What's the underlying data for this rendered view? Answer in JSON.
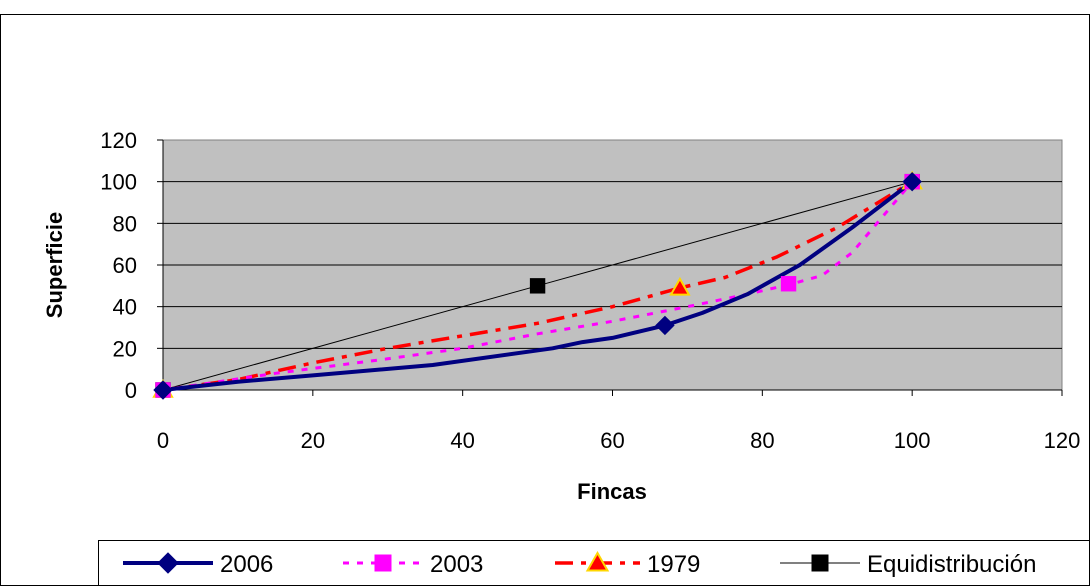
{
  "chart_data": {
    "type": "line",
    "title": "",
    "xlabel": "Fincas",
    "ylabel": "Superficie",
    "xlim": [
      0,
      120
    ],
    "ylim": [
      0,
      120
    ],
    "xticks": [
      0,
      20,
      40,
      60,
      80,
      100,
      120
    ],
    "yticks": [
      0,
      20,
      40,
      60,
      80,
      100,
      120
    ],
    "grid": "horizontal",
    "legend": "bottom",
    "plot_background": "#C0C0C0",
    "series": [
      {
        "name": "2006",
        "color": "#000080",
        "style": "solid",
        "marker": "diamond",
        "x": [
          0,
          10,
          20,
          36,
          52,
          56,
          60,
          67,
          72,
          78,
          85,
          92,
          100
        ],
        "y": [
          0,
          4,
          7,
          12,
          20,
          23,
          25,
          31,
          37,
          46,
          60,
          78,
          100
        ],
        "marker_points": [
          [
            0,
            0
          ],
          [
            67,
            31
          ],
          [
            100,
            100
          ]
        ]
      },
      {
        "name": "2003",
        "color": "#FF00FF",
        "style": "dotted",
        "marker": "square",
        "x": [
          0,
          15,
          30,
          40,
          50,
          60,
          70,
          78,
          84,
          88,
          92,
          100
        ],
        "y": [
          0,
          8,
          15,
          20,
          27,
          33,
          40,
          46,
          51,
          55,
          66,
          100
        ],
        "marker_points": [
          [
            0,
            0
          ],
          [
            83.5,
            51
          ],
          [
            100,
            100
          ]
        ]
      },
      {
        "name": "1979",
        "color": "#FF0000",
        "style": "dashdot",
        "marker": "triangle",
        "marker_fill": "#FF0000",
        "marker_stroke": "#FFD700",
        "x": [
          0,
          10,
          20,
          30,
          40,
          50,
          60,
          69,
          75,
          82,
          90,
          100
        ],
        "y": [
          0,
          5,
          13,
          20,
          26,
          32,
          40,
          49,
          54,
          64,
          78,
          100
        ],
        "marker_points": [
          [
            0,
            0
          ],
          [
            69,
            49
          ],
          [
            100,
            100
          ]
        ]
      },
      {
        "name": "Equidistribución",
        "color": "#000000",
        "style": "thin",
        "marker": "square",
        "x": [
          0,
          50,
          100
        ],
        "y": [
          0,
          50,
          100
        ],
        "marker_points": [
          [
            0,
            0
          ],
          [
            50,
            50
          ],
          [
            100,
            100
          ]
        ]
      }
    ]
  }
}
